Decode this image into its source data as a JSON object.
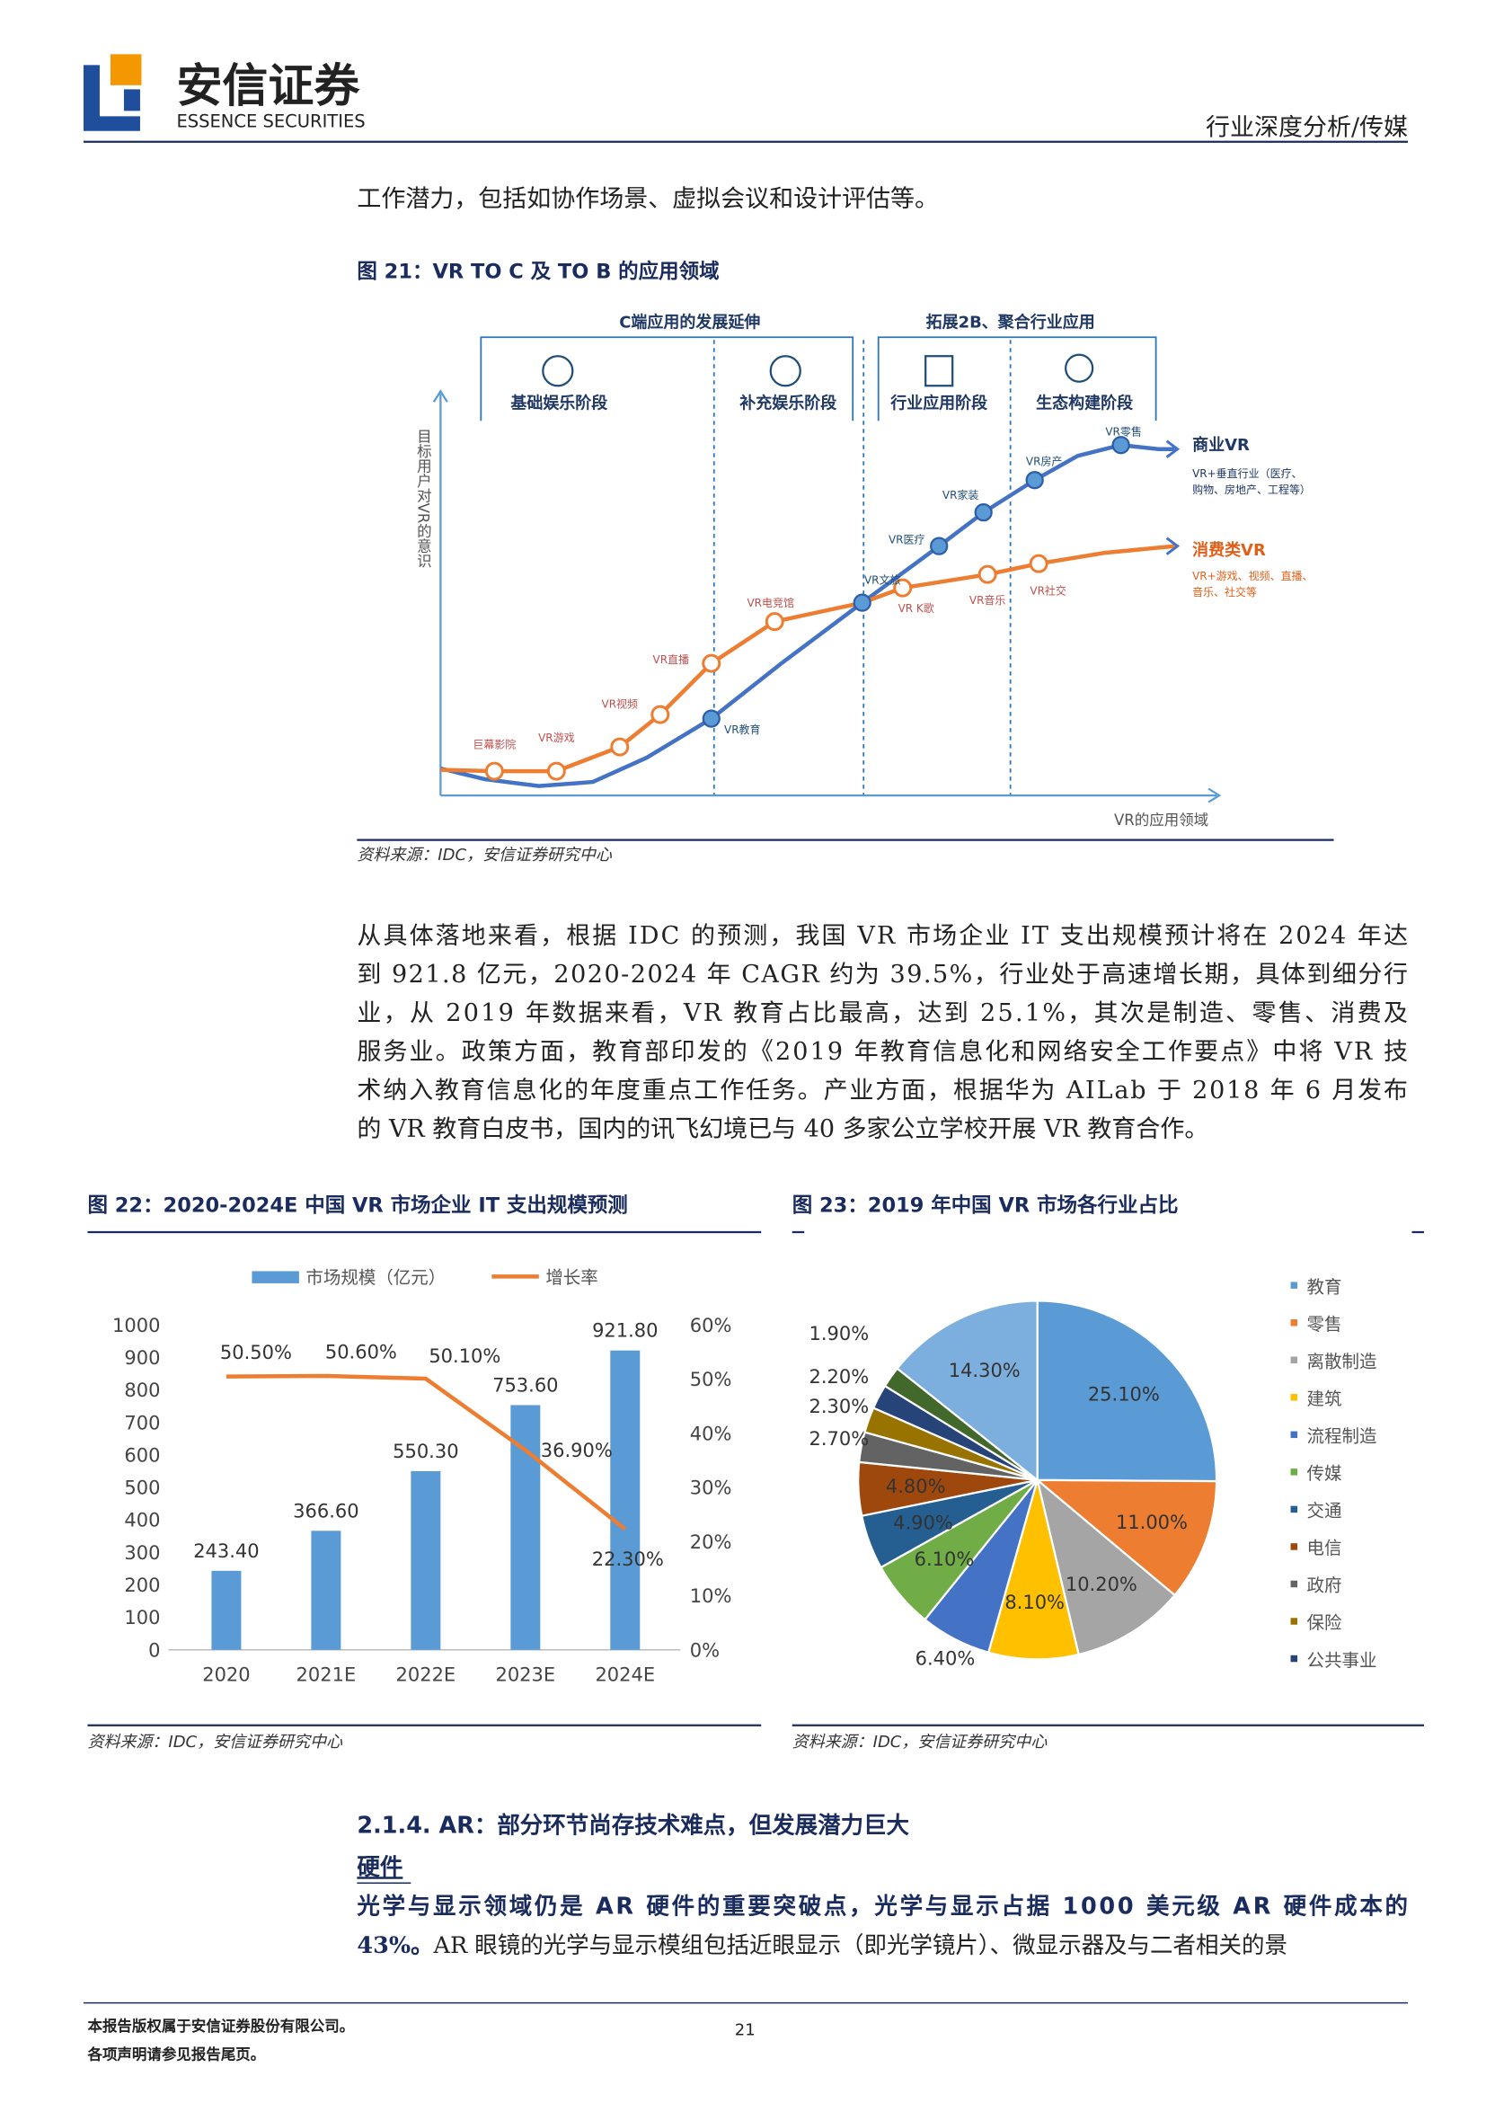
{
  "header": {
    "logo_cn": "安信证券",
    "logo_en": "ESSENCE SECURITIES",
    "section": "行业深度分析/传媒"
  },
  "intro_line": "工作潜力，包括如协作场景、虚拟会议和设计评估等。",
  "figure21": {
    "title": "图 21：VR TO C 及 TO B 的应用领域",
    "groups": [
      "C端应用的发展延伸",
      "拓展2B、聚合行业应用"
    ],
    "stages": [
      "基础娱乐阶段",
      "补充娱乐阶段",
      "行业应用阶段",
      "生态构建阶段"
    ],
    "y_axis_label": "目标用户对VR的意识",
    "x_axis_label": "VR的应用领域",
    "consumer_points": [
      "巨幕影院",
      "VR游戏",
      "VR视频",
      "VR直播",
      "VR电竞馆",
      "VR K歌",
      "VR音乐",
      "VR社交"
    ],
    "business_points": [
      "VR教育",
      "VR文旅",
      "VR医疗",
      "VR家装",
      "VR房产",
      "VR零售"
    ],
    "business_line": {
      "name": "商业VR",
      "desc": [
        "VR+垂直行业（医疗、",
        "购物、房地产、工程等）"
      ]
    },
    "consumer_line": {
      "name": "消费类VR",
      "desc": [
        "VR+游戏、视频、直播、",
        "音乐、社交等"
      ]
    },
    "source": "资料来源：IDC，安信证券研究中心"
  },
  "paragraph": {
    "lines": [
      "从具体落地来看，根据 IDC 的预测，我国 VR 市场企业 IT 支出规模预计将在 2024 年达",
      "到 921.8 亿元，2020-2024 年 CAGR 约为 39.5%，行业处于高速增长期，具体到细分行",
      "业，从 2019 年数据来看，VR 教育占比最高，达到 25.1%，其次是制造、零售、消费及",
      "服务业。政策方面，教育部印发的《2019 年教育信息化和网络安全工作要点》中将 VR 技",
      "术纳入教育信息化的年度重点工作任务。产业方面，根据华为 AILab 于 2018 年 6 月发布",
      "的 VR 教育白皮书，国内的讯飞幻境已与 40 多家公立学校开展 VR 教育合作。"
    ]
  },
  "chart_data": [
    {
      "type": "bar",
      "title": "图 22：2020-2024E 中国 VR 市场企业 IT 支出规模预测",
      "categories": [
        "2020",
        "2021E",
        "2022E",
        "2023E",
        "2024E"
      ],
      "series": [
        {
          "name": "市场规模（亿元）",
          "color": "#5b9bd5",
          "values": [
            243.4,
            366.6,
            550.3,
            753.6,
            921.8
          ],
          "value_labels": [
            "243.40",
            "366.60",
            "550.30",
            "753.60",
            "921.80"
          ]
        },
        {
          "name": "增长率",
          "type": "line",
          "axis": "y2",
          "color": "#ed7d31",
          "values": [
            50.5,
            50.6,
            50.1,
            36.9,
            22.3
          ],
          "value_labels": [
            "50.50%",
            "50.60%",
            "50.10%",
            "36.90%",
            "22.30%"
          ]
        }
      ],
      "ylim": [
        0,
        1000
      ],
      "yticks": [
        0,
        100,
        200,
        300,
        400,
        500,
        600,
        700,
        800,
        900,
        1000
      ],
      "y2lim": [
        0,
        60
      ],
      "y2ticks": [
        {
          "value": 0,
          "label": "0%"
        },
        {
          "value": 10,
          "label": "10%"
        },
        {
          "value": 20,
          "label": "20%"
        },
        {
          "value": 30,
          "label": "30%"
        },
        {
          "value": 40,
          "label": "40%"
        },
        {
          "value": 50,
          "label": "50%"
        },
        {
          "value": 60,
          "label": "60%"
        }
      ],
      "legend": "top",
      "source": "资料来源：IDC，安信证券研究中心"
    },
    {
      "type": "pie",
      "title": "图 23：2019 年中国 VR 市场各行业占比",
      "categories": [
        "教育",
        "零售",
        "离散制造",
        "建筑",
        "流程制造",
        "传媒",
        "交通",
        "电信",
        "政府",
        "保险",
        "公共事业",
        null,
        null
      ],
      "values": [
        25.1,
        11.0,
        10.2,
        8.1,
        6.4,
        6.1,
        4.9,
        4.8,
        2.7,
        2.3,
        2.2,
        1.9,
        14.3
      ],
      "value_labels": [
        "25.10%",
        "11.00%",
        "10.20%",
        "8.10%",
        "6.40%",
        "6.10%",
        "4.90%",
        "4.80%",
        "2.70%",
        "2.30%",
        "2.20%",
        "1.90%",
        "14.30%"
      ],
      "colors": [
        "#5b9bd5",
        "#ed7d31",
        "#a5a5a5",
        "#ffc000",
        "#4472c4",
        "#70ad47",
        "#255e91",
        "#9e480e",
        "#636363",
        "#997300",
        "#264478",
        "#43682b",
        "#7cafdd"
      ],
      "legend": "right",
      "source": "资料来源：IDC，安信证券研究中心"
    }
  ],
  "section": {
    "heading": "2.1.4. AR：部分环节尚存技术难点，但发展潜力巨大",
    "subheading": "硬件",
    "bold_lines": [
      "光学与显示领域仍是 AR 硬件的重要突破点，光学与显示占据 1000 美元级 AR 硬件成本的",
      "43%。"
    ],
    "normal_tail": "AR 眼镜的光学与显示模组包括近眼显示（即光学镜片）、微显示器及与二者相关的景"
  },
  "footer": {
    "copyright": "本报告版权属于安信证券股份有限公司。",
    "notice": "各项声明请参见报告尾页。",
    "page": "21"
  }
}
